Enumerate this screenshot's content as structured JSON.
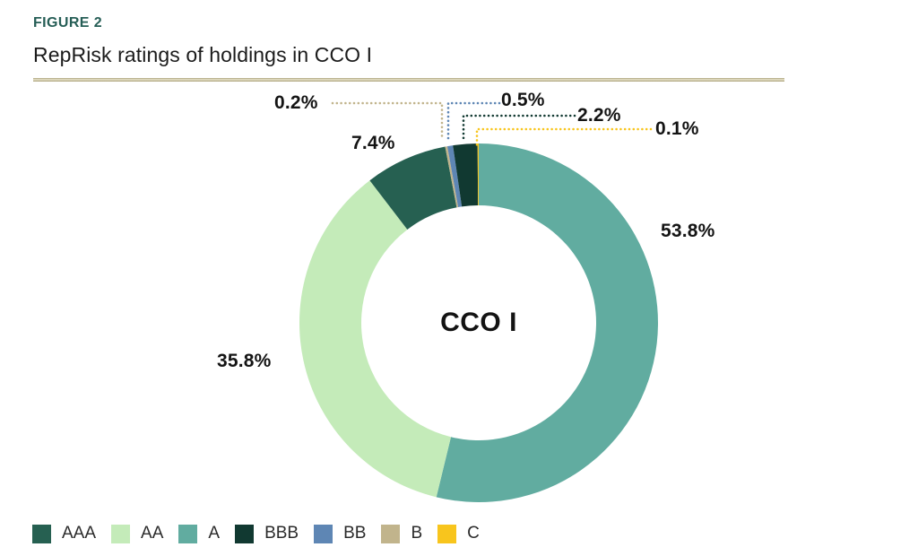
{
  "figure": {
    "eyebrow": "FIGURE 2",
    "title": "RepRisk ratings of holdings in CCO I"
  },
  "chart_data": {
    "type": "pie",
    "subtype": "donut",
    "title": "RepRisk ratings of holdings in CCO I",
    "center_label": "CCO I",
    "unit": "%",
    "direction": "clockwise",
    "start": "12-oclock",
    "legend_position": "bottom-left",
    "segments": [
      {
        "name": "A",
        "value": 53.8,
        "display": "53.8%",
        "color": "#61aca0"
      },
      {
        "name": "AA",
        "value": 35.8,
        "display": "35.8%",
        "color": "#c4ebb9"
      },
      {
        "name": "AAA",
        "value": 7.4,
        "display": "7.4%",
        "color": "#266051"
      },
      {
        "name": "B",
        "value": 0.2,
        "display": "0.2%",
        "color": "#c1b48c"
      },
      {
        "name": "BB",
        "value": 0.5,
        "display": "0.5%",
        "color": "#5e86b4"
      },
      {
        "name": "BBB",
        "value": 2.2,
        "display": "2.2%",
        "color": "#113931"
      },
      {
        "name": "C",
        "value": 0.1,
        "display": "0.1%",
        "color": "#f8c51d"
      }
    ],
    "legend": [
      {
        "label": "AAA",
        "color": "#266051"
      },
      {
        "label": "AA",
        "color": "#c4ebb9"
      },
      {
        "label": "A",
        "color": "#61aca0"
      },
      {
        "label": "BBB",
        "color": "#113931"
      },
      {
        "label": "BB",
        "color": "#5e86b4"
      },
      {
        "label": "B",
        "color": "#c1b48c"
      },
      {
        "label": "C",
        "color": "#f8c51d"
      }
    ]
  },
  "colors": {
    "accent_heading": "#265e56",
    "rule": "#a9a079",
    "text": "#1b1b1b"
  }
}
